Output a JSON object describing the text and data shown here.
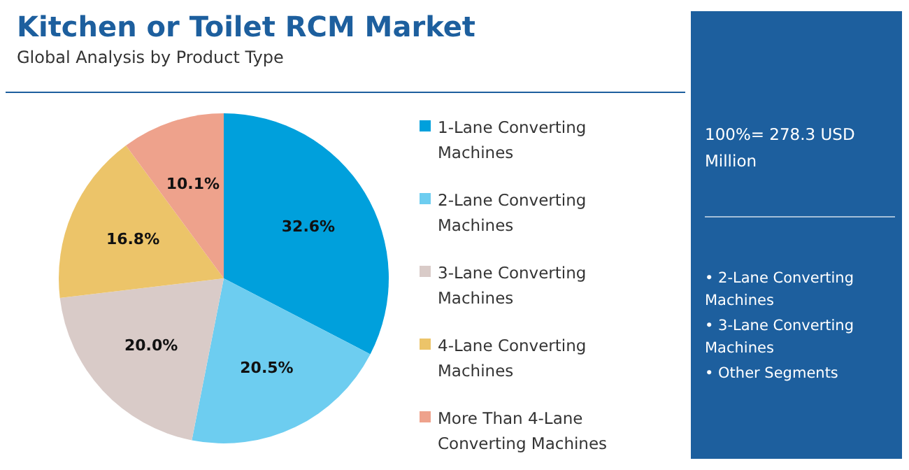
{
  "chart_data": {
    "type": "pie",
    "title": "Kitchen or Toilet RCM Market",
    "subtitle": "Global Analysis by Product Type",
    "categories": [
      "1-Lane Converting Machines",
      "2-Lane Converting Machines",
      "3-Lane Converting Machines",
      "4-Lane Converting Machines",
      "More Than 4-Lane Converting Machines"
    ],
    "values": [
      32.6,
      20.5,
      20.0,
      16.8,
      10.1
    ],
    "colors": [
      "#00a0dc",
      "#6dcdf0",
      "#d9cbc8",
      "#ecc469",
      "#eea28c"
    ],
    "value_labels": [
      "32.6%",
      "20.5%",
      "20.0%",
      "16.8%",
      "10.1%"
    ],
    "legend": "right",
    "annotations": [
      "100%= 278.3 USD Million",
      "• 2-Lane Converting Machines",
      "• 3-Lane Converting Machines",
      "• Other Segments"
    ]
  }
}
